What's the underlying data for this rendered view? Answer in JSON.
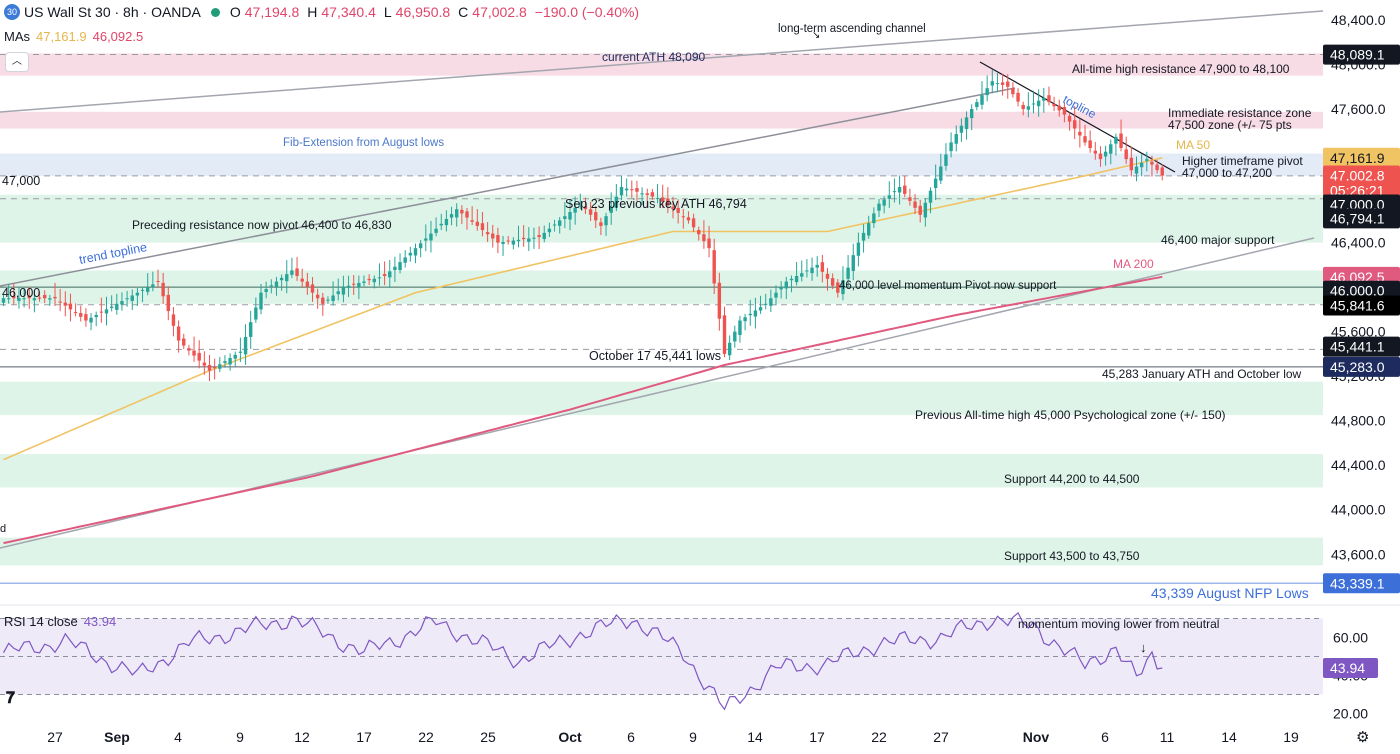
{
  "header": {
    "badge": "30",
    "symbol": "US Wall St 30 · 8h · OANDA",
    "o_label": "O",
    "o": "47,194.8",
    "h_label": "H",
    "h": "47,340.4",
    "l_label": "L",
    "l": "46,950.8",
    "c_label": "C",
    "c": "47,002.8",
    "change": "−190.0 (−0.40%)"
  },
  "mas": {
    "label": "MAs",
    "ma50": "47,161.9",
    "ma200": "46,092.5"
  },
  "rsi": {
    "label": "RSI 14 close",
    "value": "43.94"
  },
  "colors": {
    "up": "#26a69a",
    "down": "#ef5350",
    "ma50": "#f0c363",
    "ma200": "#e05a80",
    "resistance": "#f7d6e0",
    "support": "#d9f2e4",
    "pivot": "#dde8f5",
    "rsi": "#7e57c2",
    "channel": "#a3a6ae"
  },
  "chart_data": {
    "type": "candlestick",
    "title": "US Wall St 30 · 8h · OANDA",
    "ylim": [
      42900,
      48600
    ],
    "y_ticks": [
      "48,400.0",
      "48,000.0",
      "47,600.0",
      "47,200.0",
      "46,800.0",
      "46,400.0",
      "46,000.0",
      "45,600.0",
      "45,200.0",
      "44,800.0",
      "44,400.0",
      "44,000.0",
      "43,600.0"
    ],
    "x_ticks": [
      "27",
      "Sep",
      "4",
      "9",
      "12",
      "17",
      "22",
      "25",
      "Oct",
      "6",
      "9",
      "14",
      "17",
      "22",
      "27",
      "Nov",
      "6",
      "11",
      "14",
      "19"
    ],
    "keypoints": [
      {
        "i": 0,
        "p": 45900
      },
      {
        "i": 10,
        "p": 45900
      },
      {
        "i": 16,
        "p": 45700
      },
      {
        "i": 24,
        "p": 45900
      },
      {
        "i": 30,
        "p": 46050
      },
      {
        "i": 34,
        "p": 45520
      },
      {
        "i": 40,
        "p": 45250
      },
      {
        "i": 46,
        "p": 45420
      },
      {
        "i": 50,
        "p": 45950
      },
      {
        "i": 56,
        "p": 46150
      },
      {
        "i": 62,
        "p": 45850
      },
      {
        "i": 66,
        "p": 46000
      },
      {
        "i": 74,
        "p": 46100
      },
      {
        "i": 80,
        "p": 46350
      },
      {
        "i": 88,
        "p": 46700
      },
      {
        "i": 96,
        "p": 46400
      },
      {
        "i": 104,
        "p": 46450
      },
      {
        "i": 112,
        "p": 46750
      },
      {
        "i": 116,
        "p": 46550
      },
      {
        "i": 120,
        "p": 46900
      },
      {
        "i": 127,
        "p": 46800
      },
      {
        "i": 133,
        "p": 46600
      },
      {
        "i": 137,
        "p": 46350
      },
      {
        "i": 140,
        "p": 45400
      },
      {
        "i": 143,
        "p": 45700
      },
      {
        "i": 148,
        "p": 45850
      },
      {
        "i": 152,
        "p": 46050
      },
      {
        "i": 158,
        "p": 46200
      },
      {
        "i": 162,
        "p": 45950
      },
      {
        "i": 166,
        "p": 46400
      },
      {
        "i": 170,
        "p": 46750
      },
      {
        "i": 174,
        "p": 46900
      },
      {
        "i": 178,
        "p": 46650
      },
      {
        "i": 184,
        "p": 47300
      },
      {
        "i": 188,
        "p": 47600
      },
      {
        "i": 192,
        "p": 47850
      },
      {
        "i": 195,
        "p": 47800
      },
      {
        "i": 198,
        "p": 47600
      },
      {
        "i": 202,
        "p": 47700
      },
      {
        "i": 206,
        "p": 47550
      },
      {
        "i": 210,
        "p": 47300
      },
      {
        "i": 213,
        "p": 47150
      },
      {
        "i": 216,
        "p": 47350
      },
      {
        "i": 219,
        "p": 47050
      },
      {
        "i": 222,
        "p": 47150
      },
      {
        "i": 225,
        "p": 47002
      }
    ],
    "ma50": [
      {
        "i": 0,
        "p": 44450
      },
      {
        "i": 40,
        "p": 45250
      },
      {
        "i": 80,
        "p": 45950
      },
      {
        "i": 130,
        "p": 46500
      },
      {
        "i": 160,
        "p": 46500
      },
      {
        "i": 185,
        "p": 46750
      },
      {
        "i": 210,
        "p": 47000
      },
      {
        "i": 225,
        "p": 47161.9
      }
    ],
    "ma200": [
      {
        "i": 0,
        "p": 43700
      },
      {
        "i": 60,
        "p": 44300
      },
      {
        "i": 110,
        "p": 44900
      },
      {
        "i": 140,
        "p": 45300
      },
      {
        "i": 185,
        "p": 45750
      },
      {
        "i": 225,
        "p": 46092.5
      }
    ],
    "rsi": {
      "ylim": [
        18,
        75
      ],
      "levels": [
        70,
        50,
        30
      ],
      "ticks": [
        "60.00",
        "40.00",
        "20.00"
      ],
      "keypoints": [
        {
          "i": 0,
          "v": 52
        },
        {
          "i": 12,
          "v": 58
        },
        {
          "i": 26,
          "v": 40
        },
        {
          "i": 36,
          "v": 57
        },
        {
          "i": 56,
          "v": 70
        },
        {
          "i": 70,
          "v": 52
        },
        {
          "i": 84,
          "v": 68
        },
        {
          "i": 100,
          "v": 48
        },
        {
          "i": 112,
          "v": 62
        },
        {
          "i": 122,
          "v": 70
        },
        {
          "i": 132,
          "v": 52
        },
        {
          "i": 140,
          "v": 22
        },
        {
          "i": 150,
          "v": 44
        },
        {
          "i": 160,
          "v": 46
        },
        {
          "i": 170,
          "v": 57
        },
        {
          "i": 182,
          "v": 60
        },
        {
          "i": 192,
          "v": 70
        },
        {
          "i": 200,
          "v": 66
        },
        {
          "i": 210,
          "v": 45
        },
        {
          "i": 216,
          "v": 55
        },
        {
          "i": 220,
          "v": 38
        },
        {
          "i": 223,
          "v": 50
        },
        {
          "i": 225,
          "v": 43.94
        }
      ]
    }
  },
  "zones": {
    "ath_resistance": {
      "y0": 47900,
      "y1": 48100,
      "label": "All-time high resistance 47,900 to 48,100"
    },
    "immediate_resistance": {
      "y0": 47425,
      "y1": 47575,
      "label1": "Immediate resistance zone",
      "label2": "47,500 zone (+/- 75 pts"
    },
    "higher_tf_pivot": {
      "y0": 47000,
      "y1": 47200,
      "label1": "Higher timeframe pivot",
      "label2": "47,000 to 47,200"
    },
    "preceding_pivot": {
      "y0": 46400,
      "y1": 46830,
      "label": "Preceding resistance now pivot 46,400 to 46,830"
    },
    "momentum_pivot": {
      "y0": 45850,
      "y1": 46150,
      "label": "46,000 level momentum Pivot now support"
    },
    "prev_ath": {
      "y0": 44850,
      "y1": 45150,
      "label": "Previous All-time high 45,000 Psychological zone (+/- 150)"
    },
    "support_44200": {
      "y0": 44200,
      "y1": 44500,
      "label": "Support 44,200 to 44,500"
    },
    "support_43500": {
      "y0": 43500,
      "y1": 43750,
      "label": "Support 43,500 to 43,750"
    }
  },
  "levels": {
    "ath_48090": {
      "price": 48090,
      "label": "current ATH 48,090"
    },
    "sep23": {
      "price": 46794,
      "label": "Sep 23 previous key ATH 46,794"
    },
    "oct17": {
      "price": 45441,
      "label": "October 17 45,441 lows"
    },
    "jan_ath": {
      "price": 45283,
      "label": "45,283 January ATH and October low"
    },
    "nfp": {
      "price": 43339,
      "label": "43,339 August NFP Lows"
    },
    "line_47000": {
      "price": 47000,
      "label": "47,000"
    },
    "line_46000": {
      "price": 46000,
      "label": "46,000"
    },
    "major_support": {
      "label": "46,400 major support"
    }
  },
  "annotations": {
    "channel": "long-term ascending channel",
    "fib": "Fib-Extension from August lows",
    "trend_topline": "trend topline",
    "topline": "topline",
    "ma50": "MA 50",
    "ma200": "MA 200",
    "rsi_note": "momentum moving lower from neutral",
    "left_cut": "d"
  },
  "price_tags": [
    {
      "label": "48,089.1",
      "price": 48089.1,
      "bg": "#131722",
      "fg": "#ffffff"
    },
    {
      "label": "47,161.9",
      "price": 47161.9,
      "bg": "#f0c363",
      "fg": "#131722"
    },
    {
      "label": "47,002.8",
      "price": 47002.8,
      "bg": "#ef5350",
      "fg": "#ffffff"
    },
    {
      "label": "05:26:21",
      "price": 46866,
      "bg": "#ef5350",
      "fg": "#ffffff"
    },
    {
      "label": "47,000.0",
      "price": 46742,
      "bg": "#131722",
      "fg": "#ffffff"
    },
    {
      "label": "46,794.1",
      "price": 46618,
      "bg": "#131722",
      "fg": "#ffffff"
    },
    {
      "label": "46,092.5",
      "price": 46092.5,
      "bg": "#e05a80",
      "fg": "#ffffff"
    },
    {
      "label": "46,000.0",
      "price": 45968,
      "bg": "#131722",
      "fg": "#ffffff"
    },
    {
      "label": "45,841.6",
      "price": 45835,
      "bg": "#000000",
      "fg": "#ffffff"
    },
    {
      "label": "45,441.1",
      "price": 45466,
      "bg": "#131722",
      "fg": "#ffffff"
    },
    {
      "label": "45,283.0",
      "price": 45283,
      "bg": "#1e2b5e",
      "fg": "#ffffff"
    },
    {
      "label": "43,339.1",
      "price": 43339.1,
      "bg": "#3d6fd9",
      "fg": "#ffffff"
    }
  ],
  "rsi_tag": {
    "label": "43.94",
    "bg": "#7e57c2",
    "fg": "#ffffff"
  }
}
